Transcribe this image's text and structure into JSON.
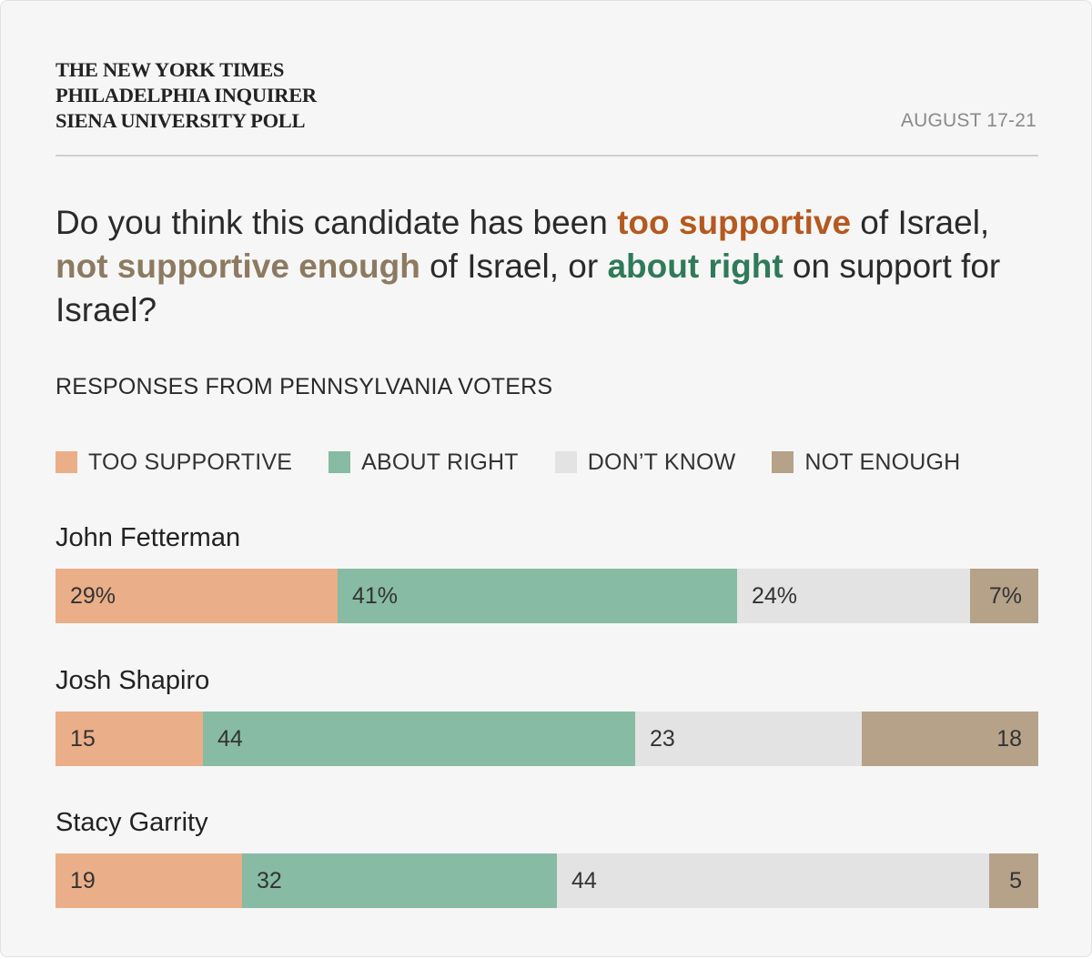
{
  "header": {
    "source_lines": [
      "THE NEW YORK TIMES",
      "PHILADELPHIA INQUIRER",
      "SIENA UNIVERSITY POLL"
    ],
    "date": "AUGUST 17-21"
  },
  "question": {
    "p1": "Do you think this candidate has been ",
    "em1": "too supportive",
    "p2": " of Israel, ",
    "em2": "not supportive enough",
    "p3": " of Israel, or ",
    "em3": "about right",
    "p4": " on support for Israel?"
  },
  "subtitle": "RESPONSES FROM PENNSYLVANIA VOTERS",
  "colors": {
    "too_supportive": "#eaae89",
    "about_right": "#88bba4",
    "dont_know": "#e3e3e3",
    "not_enough": "#b5a289",
    "too_supportive_text": "#b4591f",
    "not_enough_text": "#8c7a61",
    "about_right_text": "#2f7a59"
  },
  "chart_data": {
    "type": "bar",
    "orientation": "horizontal",
    "stacked": true,
    "unit": "%",
    "xlim": [
      0,
      100
    ],
    "categories": [
      "John Fetterman",
      "Josh Shapiro",
      "Stacy Garrity"
    ],
    "series": [
      {
        "name": "TOO SUPPORTIVE",
        "key": "too_supportive",
        "values": [
          29,
          15,
          19
        ],
        "labels": [
          "29%",
          "15",
          "19"
        ]
      },
      {
        "name": "ABOUT RIGHT",
        "key": "about_right",
        "values": [
          41,
          44,
          32
        ],
        "labels": [
          "41%",
          "44",
          "32"
        ]
      },
      {
        "name": "DON’T KNOW",
        "key": "dont_know",
        "values": [
          24,
          23,
          44
        ],
        "labels": [
          "24%",
          "23",
          "44"
        ]
      },
      {
        "name": "NOT ENOUGH",
        "key": "not_enough",
        "values": [
          7,
          18,
          5
        ],
        "labels": [
          "7%",
          "18",
          "5"
        ]
      }
    ],
    "legend": "top"
  }
}
